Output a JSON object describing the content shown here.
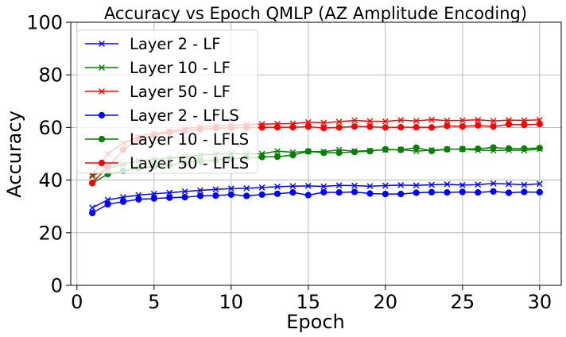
{
  "chart_data": {
    "type": "line",
    "title": "Accuracy vs Epoch QMLP (AZ Amplitude Encoding)",
    "xlabel": "Epoch",
    "ylabel": "Accuracy",
    "xlim": [
      -0.4,
      31.4
    ],
    "ylim": [
      0,
      100
    ],
    "xticks": [
      0,
      5,
      10,
      15,
      20,
      25,
      30
    ],
    "yticks": [
      0,
      20,
      40,
      60,
      80,
      100
    ],
    "grid": true,
    "legend_position": "upper-left",
    "x": [
      1,
      2,
      3,
      4,
      5,
      6,
      7,
      8,
      9,
      10,
      11,
      12,
      13,
      14,
      15,
      16,
      17,
      18,
      19,
      20,
      21,
      22,
      23,
      24,
      25,
      26,
      27,
      28,
      29,
      30
    ],
    "series": [
      {
        "name": "Layer 2 - LF",
        "color": "#0000ff",
        "marker": "x",
        "values": [
          29.5,
          32.5,
          33.5,
          34.3,
          34.8,
          35.2,
          35.7,
          36.1,
          36.5,
          36.8,
          36.9,
          37.2,
          37.5,
          37.7,
          37.8,
          37.6,
          38.0,
          37.9,
          37.7,
          37.9,
          38.1,
          38.0,
          38.2,
          38.4,
          38.1,
          38.3,
          38.7,
          38.5,
          38.2,
          38.6
        ]
      },
      {
        "name": "Layer 10 - LF",
        "color": "#008000",
        "marker": "x",
        "values": [
          41.5,
          44.5,
          46.0,
          47.3,
          47.8,
          48.3,
          48.9,
          49.5,
          49.8,
          50.1,
          49.9,
          50.0,
          51.0,
          50.6,
          50.9,
          50.8,
          51.5,
          51.0,
          51.2,
          51.5,
          51.6,
          51.0,
          51.4,
          51.7,
          51.8,
          51.4,
          51.2,
          51.4,
          51.3,
          51.8
        ]
      },
      {
        "name": "Layer 50 - LF",
        "color": "#ff0000",
        "marker": "x",
        "values": [
          42.0,
          50.0,
          54.0,
          56.5,
          57.8,
          58.5,
          59.5,
          60.2,
          60.6,
          60.9,
          61.1,
          61.3,
          61.4,
          61.5,
          62.0,
          61.8,
          62.2,
          62.7,
          62.4,
          62.3,
          62.8,
          62.5,
          63.0,
          62.6,
          62.7,
          62.9,
          62.5,
          62.8,
          62.7,
          62.9
        ]
      },
      {
        "name": "Layer 2 - LFLS",
        "color": "#0000ff",
        "marker": "o",
        "values": [
          27.5,
          30.8,
          31.8,
          32.7,
          33.0,
          33.3,
          33.5,
          34.0,
          34.1,
          34.5,
          34.0,
          34.5,
          34.8,
          35.3,
          34.3,
          35.4,
          35.3,
          35.5,
          34.9,
          34.7,
          34.7,
          35.2,
          35.4,
          35.3,
          35.5,
          35.3,
          35.7,
          35.2,
          35.5,
          35.4
        ]
      },
      {
        "name": "Layer 10 - LFLS",
        "color": "#008000",
        "marker": "o",
        "values": [
          38.8,
          42.3,
          43.5,
          44.5,
          45.2,
          45.5,
          46.5,
          47.3,
          47.6,
          48.1,
          48.4,
          48.8,
          48.9,
          49.5,
          50.9,
          50.4,
          50.4,
          50.7,
          51.0,
          51.7,
          51.5,
          52.3,
          51.1,
          51.7,
          51.8,
          51.9,
          52.4,
          52.0,
          52.0,
          52.2
        ]
      },
      {
        "name": "Layer 50 - LFLS",
        "color": "#ff0000",
        "marker": "o",
        "values": [
          39.0,
          45.0,
          51.5,
          55.5,
          57.0,
          58.2,
          58.9,
          59.3,
          59.7,
          59.9,
          60.0,
          60.0,
          60.1,
          60.1,
          60.3,
          59.8,
          60.0,
          60.4,
          60.3,
          60.0,
          60.1,
          60.1,
          60.0,
          60.6,
          60.4,
          60.8,
          60.4,
          61.2,
          61.0,
          61.3
        ]
      }
    ]
  }
}
